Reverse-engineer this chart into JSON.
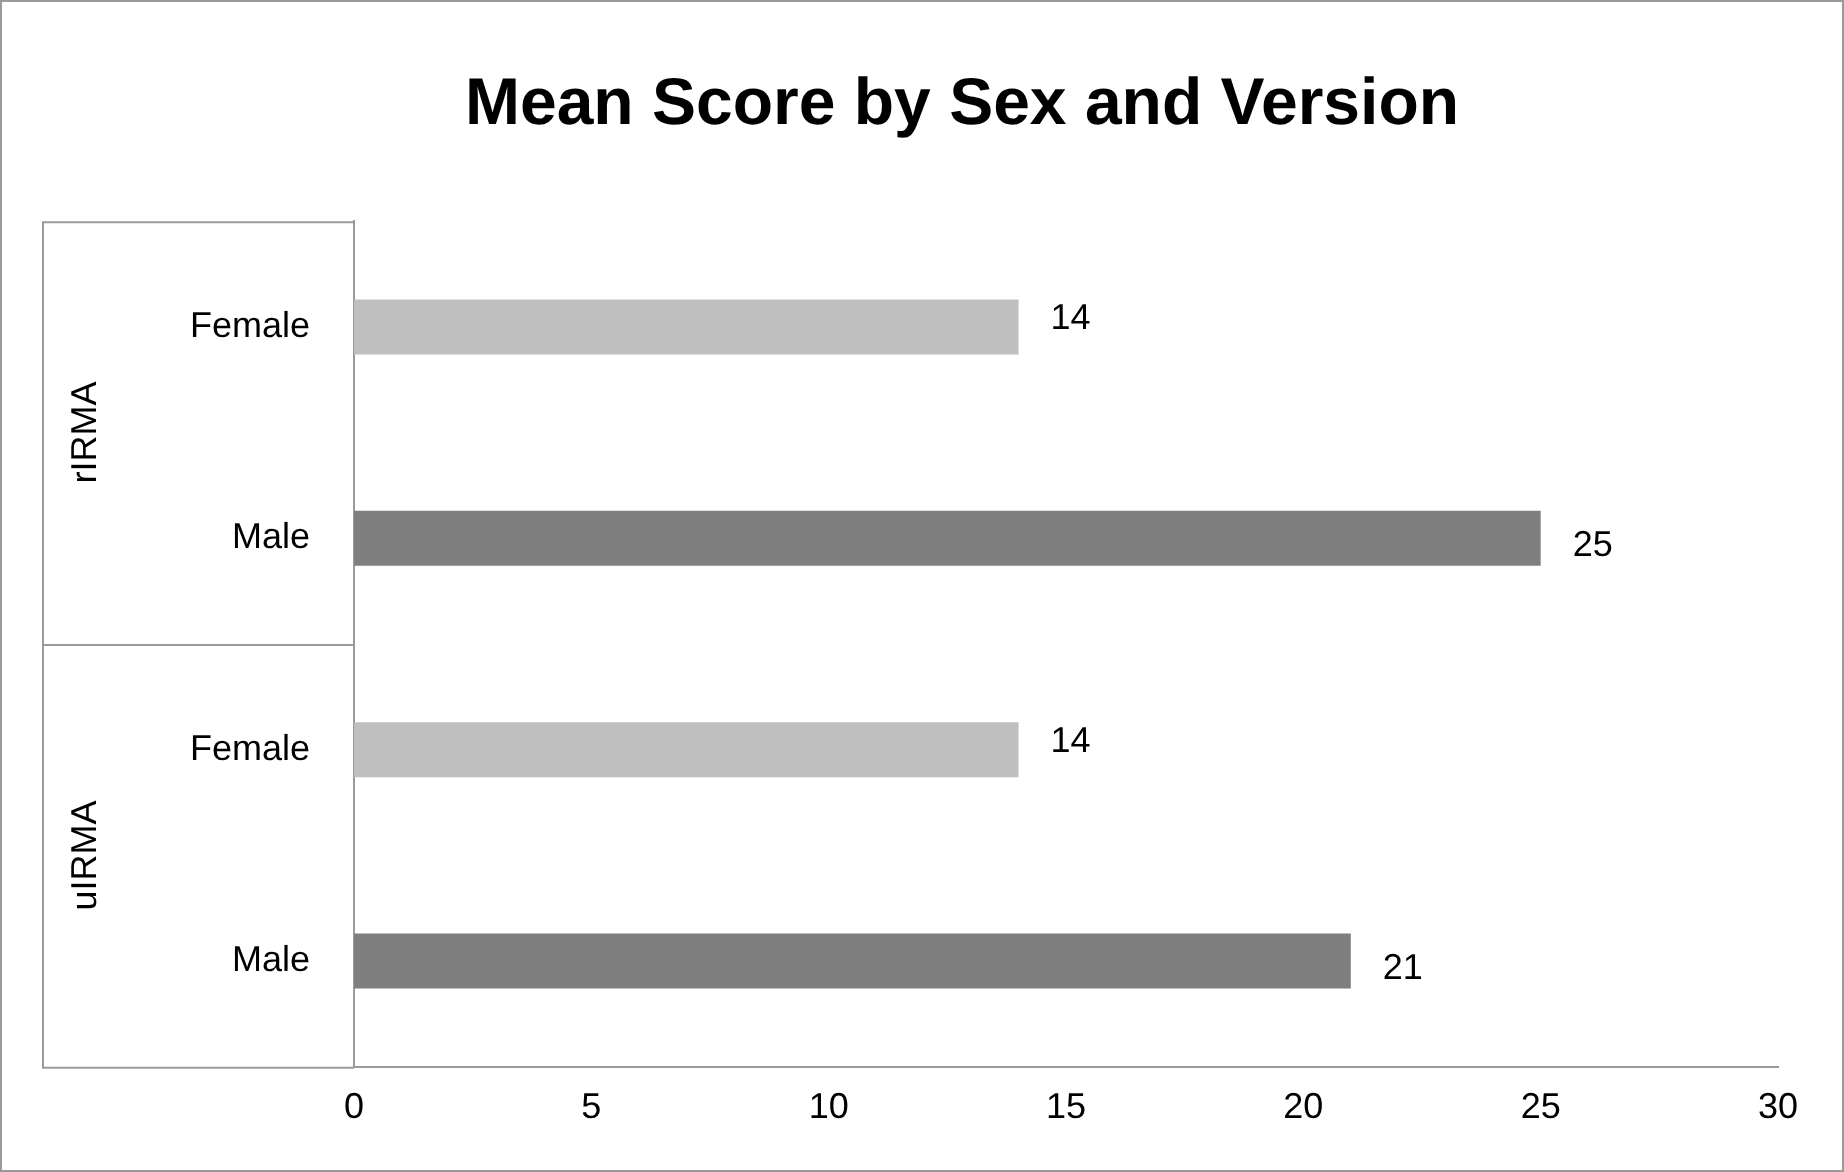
{
  "chart_data": {
    "type": "bar",
    "orientation": "horizontal",
    "title": "Mean Score by Sex and Version",
    "categories": [
      "Female",
      "Male",
      "Female",
      "Male"
    ],
    "values": [
      14,
      25,
      14,
      21
    ],
    "colors": [
      "#bfbfbf",
      "#7f7f7f",
      "#bfbfbf",
      "#7f7f7f"
    ],
    "xlim": [
      0,
      30
    ],
    "xticks": [
      0,
      5,
      10,
      15,
      20,
      25,
      30
    ],
    "data_labels": true,
    "grid": false,
    "legend": false,
    "annotations": [
      "rIRMA",
      "uIRMA"
    ]
  }
}
